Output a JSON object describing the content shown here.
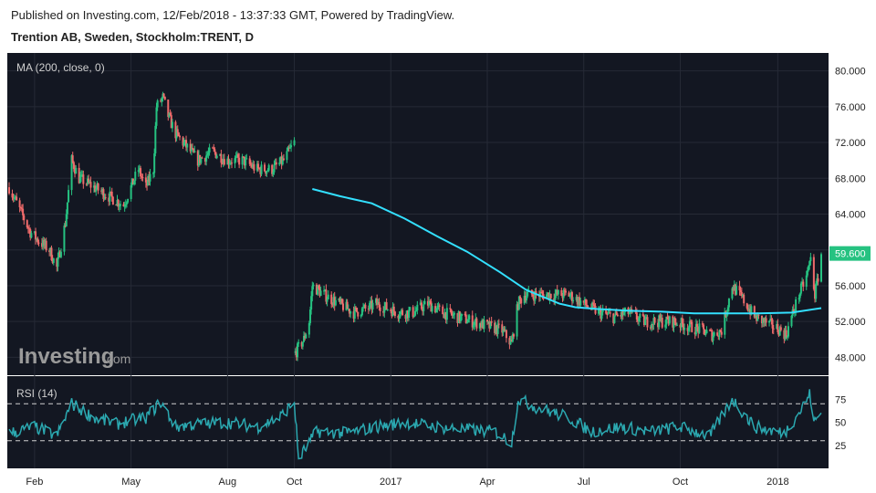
{
  "header": {
    "published": "Published on Investing.com, 12/Feb/2018 - 13:37:33 GMT, Powered by TradingView.",
    "symbol": "Trention AB, Sweden, Stockholm:TRENT, D"
  },
  "watermark": {
    "brand": "Investing",
    "suffix": ".com"
  },
  "colors": {
    "background": "#131722",
    "grid": "#262a36",
    "up": "#26c281",
    "down": "#ef6b6b",
    "ma": "#33e0ff",
    "rsi": "#2ba8b0",
    "price_tag": "#26c281",
    "axis_text": "#222222",
    "label_text": "#cfcfcf"
  },
  "chart_data": [
    {
      "type": "candlestick",
      "indicator_label": "MA (200, close, 0)",
      "ylim": [
        46,
        82
      ],
      "y_ticks": [
        "80.000",
        "76.000",
        "72.000",
        "68.000",
        "64.000",
        "60.000",
        "56.000",
        "52.000",
        "48.000"
      ],
      "y_tick_values": [
        80,
        76,
        72,
        68,
        64,
        60,
        56,
        52,
        48
      ],
      "last_price": "59.600",
      "last_price_value": 59.6,
      "x_labels": [
        "Feb",
        "May",
        "Aug",
        "Oct",
        "2017",
        "Apr",
        "Jul",
        "Oct",
        "2018"
      ],
      "x_label_dates": [
        "2016-02-01",
        "2016-05-02",
        "2016-08-01",
        "2016-10-03",
        "2017-01-02",
        "2017-04-03",
        "2017-07-03",
        "2017-10-02",
        "2018-01-02"
      ],
      "date_range": [
        "2016-01-08",
        "2018-02-12"
      ],
      "close_path": [
        [
          "2016-01-08",
          67
        ],
        [
          "2016-01-20",
          64
        ],
        [
          "2016-01-28",
          62
        ],
        [
          "2016-02-05",
          61
        ],
        [
          "2016-02-15",
          60
        ],
        [
          "2016-02-22",
          58
        ],
        [
          "2016-03-01",
          63
        ],
        [
          "2016-03-07",
          70
        ],
        [
          "2016-03-14",
          68
        ],
        [
          "2016-03-28",
          67
        ],
        [
          "2016-04-11",
          66
        ],
        [
          "2016-04-25",
          65
        ],
        [
          "2016-05-02",
          67
        ],
        [
          "2016-05-09",
          69
        ],
        [
          "2016-05-16",
          67
        ],
        [
          "2016-05-23",
          69
        ],
        [
          "2016-05-26",
          76
        ],
        [
          "2016-06-01",
          77
        ],
        [
          "2016-06-06",
          75
        ],
        [
          "2016-06-13",
          73
        ],
        [
          "2016-06-20",
          72
        ],
        [
          "2016-06-27",
          71
        ],
        [
          "2016-07-04",
          70
        ],
        [
          "2016-07-18",
          71
        ],
        [
          "2016-08-01",
          70
        ],
        [
          "2016-08-15",
          70
        ],
        [
          "2016-08-29",
          69
        ],
        [
          "2016-09-12",
          69
        ],
        [
          "2016-09-23",
          70
        ],
        [
          "2016-09-28",
          71
        ],
        [
          "2016-10-03",
          72
        ]
      ],
      "close_path_2": [
        [
          "2016-10-04",
          48.5
        ],
        [
          "2016-10-12",
          50
        ],
        [
          "2016-10-17",
          52
        ],
        [
          "2016-10-20",
          56
        ],
        [
          "2016-10-31",
          55
        ],
        [
          "2016-11-14",
          54
        ],
        [
          "2016-11-28",
          53
        ],
        [
          "2016-12-12",
          53.5
        ],
        [
          "2016-12-19",
          54
        ],
        [
          "2017-01-09",
          53
        ],
        [
          "2017-01-23",
          53
        ],
        [
          "2017-02-06",
          54
        ],
        [
          "2017-02-20",
          53
        ],
        [
          "2017-03-06",
          52.5
        ],
        [
          "2017-03-20",
          52
        ],
        [
          "2017-04-03",
          51.5
        ],
        [
          "2017-04-17",
          51
        ],
        [
          "2017-04-26",
          49.5
        ],
        [
          "2017-04-28",
          51
        ],
        [
          "2017-05-02",
          54
        ],
        [
          "2017-05-08",
          55
        ],
        [
          "2017-05-22",
          55
        ],
        [
          "2017-06-05",
          55
        ],
        [
          "2017-06-19",
          55
        ],
        [
          "2017-07-03",
          54
        ],
        [
          "2017-07-17",
          53
        ],
        [
          "2017-07-31",
          52.5
        ],
        [
          "2017-08-14",
          53
        ],
        [
          "2017-08-28",
          52
        ],
        [
          "2017-09-11",
          52
        ],
        [
          "2017-09-25",
          52
        ],
        [
          "2017-10-09",
          51.5
        ],
        [
          "2017-10-23",
          51
        ],
        [
          "2017-11-01",
          50.5
        ],
        [
          "2017-11-10",
          51
        ],
        [
          "2017-11-20",
          56
        ],
        [
          "2017-11-30",
          54.5
        ],
        [
          "2017-12-11",
          52.5
        ],
        [
          "2017-12-20",
          52
        ],
        [
          "2018-01-05",
          51
        ],
        [
          "2018-01-10",
          50.5
        ],
        [
          "2018-01-15",
          52.5
        ],
        [
          "2018-01-22",
          55
        ],
        [
          "2018-01-29",
          57
        ],
        [
          "2018-02-02",
          59
        ],
        [
          "2018-02-06",
          55
        ],
        [
          "2018-02-09",
          57
        ],
        [
          "2018-02-12",
          59.6
        ]
      ],
      "ma_path": [
        [
          "2016-10-20",
          66.8
        ],
        [
          "2016-11-15",
          66
        ],
        [
          "2016-12-15",
          65.2
        ],
        [
          "2017-01-15",
          63.5
        ],
        [
          "2017-02-15",
          61.5
        ],
        [
          "2017-03-15",
          59.8
        ],
        [
          "2017-04-15",
          57.5
        ],
        [
          "2017-05-10",
          55.5
        ],
        [
          "2017-06-10",
          54
        ],
        [
          "2017-06-25",
          53.6
        ],
        [
          "2017-07-15",
          53.4
        ],
        [
          "2017-08-15",
          53.2
        ],
        [
          "2017-09-15",
          53.1
        ],
        [
          "2017-10-15",
          52.9
        ],
        [
          "2017-11-15",
          52.9
        ],
        [
          "2017-12-15",
          52.9
        ],
        [
          "2018-01-15",
          53
        ],
        [
          "2018-02-12",
          53.5
        ]
      ]
    },
    {
      "type": "line",
      "indicator_label": "RSI (14)",
      "ylim": [
        0,
        100
      ],
      "y_ticks": [
        "75",
        "50",
        "25"
      ],
      "y_tick_values": [
        75,
        50,
        25
      ],
      "levels": [
        70,
        30
      ],
      "path": [
        [
          "2016-01-08",
          38
        ],
        [
          "2016-02-01",
          45
        ],
        [
          "2016-02-22",
          35
        ],
        [
          "2016-03-07",
          70
        ],
        [
          "2016-03-28",
          55
        ],
        [
          "2016-04-18",
          48
        ],
        [
          "2016-05-02",
          52
        ],
        [
          "2016-05-16",
          55
        ],
        [
          "2016-05-30",
          72
        ],
        [
          "2016-06-13",
          45
        ],
        [
          "2016-07-04",
          48
        ],
        [
          "2016-08-01",
          50
        ],
        [
          "2016-08-29",
          45
        ],
        [
          "2016-09-19",
          55
        ],
        [
          "2016-10-03",
          72
        ],
        [
          "2016-10-07",
          10
        ],
        [
          "2016-10-24",
          40
        ],
        [
          "2016-11-21",
          38
        ],
        [
          "2016-12-19",
          45
        ],
        [
          "2017-01-16",
          50
        ],
        [
          "2017-02-13",
          45
        ],
        [
          "2017-03-13",
          42
        ],
        [
          "2017-04-10",
          40
        ],
        [
          "2017-04-26",
          28
        ],
        [
          "2017-05-02",
          75
        ],
        [
          "2017-05-22",
          65
        ],
        [
          "2017-06-19",
          55
        ],
        [
          "2017-07-10",
          40
        ],
        [
          "2017-08-07",
          45
        ],
        [
          "2017-09-04",
          40
        ],
        [
          "2017-10-02",
          45
        ],
        [
          "2017-10-30",
          35
        ],
        [
          "2017-11-20",
          75
        ],
        [
          "2017-12-11",
          45
        ],
        [
          "2018-01-08",
          38
        ],
        [
          "2018-01-22",
          60
        ],
        [
          "2018-02-01",
          80
        ],
        [
          "2018-02-06",
          50
        ],
        [
          "2018-02-12",
          60
        ]
      ]
    }
  ]
}
